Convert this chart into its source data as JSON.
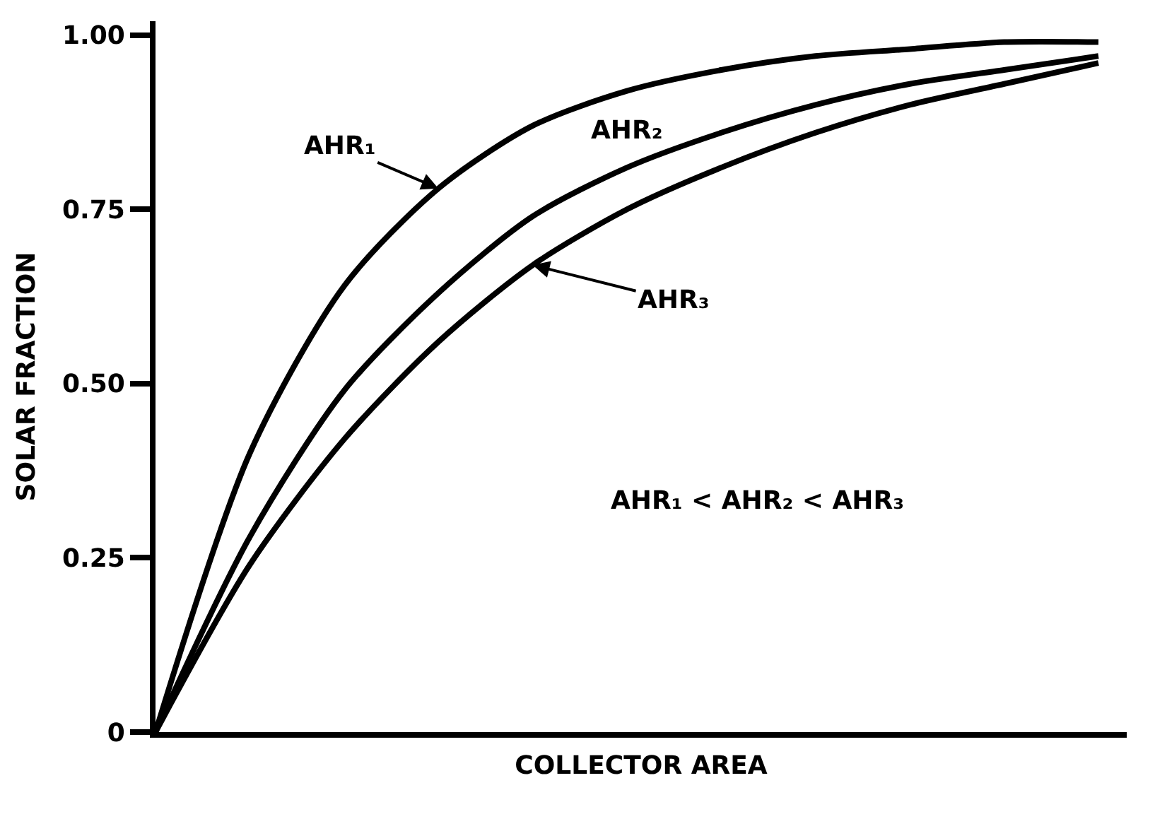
{
  "chart_data": {
    "type": "line",
    "xlabel": "COLLECTOR AREA",
    "ylabel": "SOLAR FRACTION",
    "categories": [
      null,
      null,
      null,
      null,
      null,
      null,
      null,
      null,
      null,
      null,
      null
    ],
    "series": [
      {
        "name": "AHR₁",
        "color": "#000000",
        "values": [
          0,
          0.4,
          0.64,
          0.78,
          0.87,
          0.92,
          0.95,
          0.97,
          0.98,
          0.99,
          0.99
        ]
      },
      {
        "name": "AHR₂",
        "color": "#000000",
        "values": [
          0,
          0.28,
          0.49,
          0.63,
          0.74,
          0.81,
          0.86,
          0.9,
          0.93,
          0.95,
          0.97
        ]
      },
      {
        "name": "AHR₃",
        "color": "#000000",
        "values": [
          0,
          0.24,
          0.42,
          0.56,
          0.67,
          0.75,
          0.81,
          0.86,
          0.9,
          0.93,
          0.96
        ]
      }
    ],
    "ylim": [
      0,
      1.02
    ],
    "yticks": [
      0,
      {
        "value": 0.25,
        "label": "0.25"
      },
      {
        "value": 0.5,
        "label": "0.50"
      },
      {
        "value": 0.75,
        "label": "0.75"
      },
      {
        "value": 1,
        "label": "1.00"
      }
    ],
    "tick_labels": "y",
    "legend": false,
    "marker": "none",
    "line_style": "solid",
    "annotations": [
      "AHR₁ < AHR₂ < AHR₃"
    ]
  }
}
